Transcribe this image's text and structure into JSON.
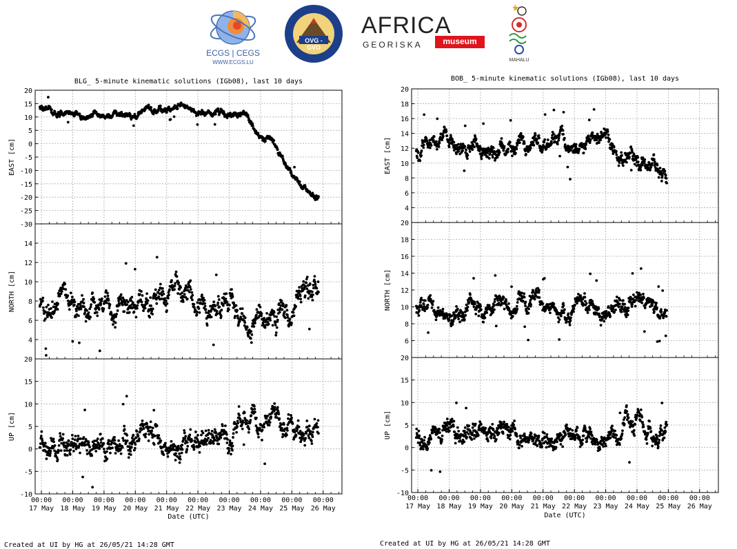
{
  "logos": {
    "ecgs": {
      "title": "ECGS | CEGS",
      "url": "WWW.ECGS.LU"
    },
    "ovg": {
      "ring_text": "OBSERVATOIRE VOLCANOLOGIQUE DE GOMA",
      "ring_bottom": "GOMA VOLCANO OBSERVATORY",
      "badge": "OVG - GVO"
    },
    "africa": {
      "title": "AFRICA",
      "sub": "GEORISKA",
      "badge": "museum"
    },
    "mahalu": {
      "caption": "MAHALU"
    }
  },
  "footers": {
    "left": "Created at UI by HG at 26/05/21 14:28 GMT",
    "right": "Created at UI by HG at 26/05/21 14:28 GMT"
  },
  "chart_data": [
    {
      "station": "BLG",
      "type": "scatter",
      "title": "BLG_ 5-minute kinematic solutions (IGb08), last 10 days",
      "xlabel": "Date (UTC)",
      "x_ticks": [
        "17 May",
        "18 May",
        "19 May",
        "20 May",
        "21 May",
        "22 May",
        "23 May",
        "24 May",
        "25 May",
        "26 May"
      ],
      "x_tick_time": "00:00",
      "x_range_days": [
        -0.2,
        9.6
      ],
      "data_end_day": 8.85,
      "grid": true,
      "panels": [
        {
          "ylabel": "EAST [cm]",
          "ylim": [
            -30,
            20
          ],
          "yticks": [
            -30,
            -25,
            -20,
            -15,
            -10,
            -5,
            0,
            5,
            10,
            15,
            20
          ],
          "series_anchors": [
            [
              0.0,
              13.5
            ],
            [
              0.4,
              11.0
            ],
            [
              0.9,
              11.5
            ],
            [
              1.4,
              10.5
            ],
            [
              2.0,
              11.0
            ],
            [
              3.0,
              10.5
            ],
            [
              4.0,
              12.5
            ],
            [
              4.5,
              14.0
            ],
            [
              5.2,
              12.0
            ],
            [
              6.0,
              12.0
            ],
            [
              6.5,
              11.0
            ],
            [
              6.9,
              4.0
            ],
            [
              7.3,
              2.0
            ],
            [
              7.8,
              -7.0
            ],
            [
              8.3,
              -15.0
            ],
            [
              8.8,
              -20.0
            ],
            [
              9.3,
              -22.0
            ],
            [
              9.8,
              -23.0
            ]
          ],
          "noise": 1.2
        },
        {
          "ylabel": "NORTH [cm]",
          "ylim": [
            2,
            16
          ],
          "yticks": [
            4,
            6,
            8,
            10,
            12,
            14
          ],
          "series_anchors": [
            [
              0.0,
              8.0
            ],
            [
              1.0,
              7.5
            ],
            [
              2.0,
              7.8
            ],
            [
              3.0,
              7.6
            ],
            [
              4.0,
              8.5
            ],
            [
              5.0,
              7.6
            ],
            [
              6.0,
              8.0
            ],
            [
              6.5,
              6.0
            ],
            [
              7.5,
              6.5
            ],
            [
              8.0,
              7.5
            ],
            [
              8.6,
              8.5
            ],
            [
              9.1,
              10.5
            ],
            [
              9.8,
              12.0
            ]
          ],
          "noise": 1.3
        },
        {
          "ylabel": "UP [cm]",
          "ylim": [
            -10,
            20
          ],
          "yticks": [
            -10,
            -5,
            0,
            5,
            10,
            15,
            20
          ],
          "series_anchors": [
            [
              0.0,
              1.0
            ],
            [
              1.0,
              2.0
            ],
            [
              2.0,
              1.0
            ],
            [
              3.0,
              1.0
            ],
            [
              4.0,
              2.0
            ],
            [
              5.0,
              1.0
            ],
            [
              6.0,
              0.5
            ],
            [
              6.2,
              6.0
            ],
            [
              7.0,
              5.5
            ],
            [
              8.0,
              5.0
            ],
            [
              9.0,
              4.0
            ],
            [
              9.8,
              6.0
            ]
          ],
          "noise": 2.6
        }
      ]
    },
    {
      "station": "BOB",
      "type": "scatter",
      "title": "BOB_ 5-minute kinematic solutions (IGb08), last 10 days",
      "xlabel": "Date (UTC)",
      "x_ticks": [
        "17 May",
        "18 May",
        "19 May",
        "20 May",
        "21 May",
        "22 May",
        "23 May",
        "24 May",
        "25 May",
        "26 May"
      ],
      "x_tick_time": "00:00",
      "x_range_days": [
        -0.2,
        9.6
      ],
      "data_end_day": 7.95,
      "grid": true,
      "panels": [
        {
          "ylabel": "EAST [cm]",
          "ylim": [
            2,
            20
          ],
          "yticks": [
            4,
            6,
            8,
            10,
            12,
            14,
            16,
            18,
            20
          ],
          "series_anchors": [
            [
              0.0,
              11.5
            ],
            [
              0.5,
              13.5
            ],
            [
              1.0,
              12.5
            ],
            [
              2.0,
              12.5
            ],
            [
              3.0,
              12.0
            ],
            [
              4.0,
              12.5
            ],
            [
              5.0,
              12.5
            ],
            [
              6.0,
              12.5
            ],
            [
              6.5,
              11.0
            ],
            [
              7.0,
              10.0
            ],
            [
              7.5,
              8.5
            ],
            [
              8.0,
              7.5
            ]
          ],
          "noise": 1.1
        },
        {
          "ylabel": "NORTH [cm]",
          "ylim": [
            4,
            20
          ],
          "yticks": [
            6,
            8,
            10,
            12,
            14,
            16,
            18,
            20
          ],
          "series_anchors": [
            [
              0.0,
              9.8
            ],
            [
              1.0,
              10.0
            ],
            [
              2.0,
              10.0
            ],
            [
              3.0,
              10.5
            ],
            [
              4.0,
              10.0
            ],
            [
              5.0,
              10.0
            ],
            [
              6.0,
              10.0
            ],
            [
              6.5,
              10.5
            ],
            [
              7.0,
              11.0
            ],
            [
              7.5,
              10.0
            ],
            [
              8.0,
              9.5
            ]
          ],
          "noise": 1.0
        },
        {
          "ylabel": "UP [cm]",
          "ylim": [
            -10,
            20
          ],
          "yticks": [
            -10,
            -5,
            0,
            5,
            10,
            15,
            20
          ],
          "series_anchors": [
            [
              0.0,
              3.0
            ],
            [
              1.0,
              3.5
            ],
            [
              2.0,
              3.5
            ],
            [
              3.0,
              2.5
            ],
            [
              4.0,
              3.5
            ],
            [
              5.0,
              2.0
            ],
            [
              6.0,
              2.5
            ],
            [
              7.0,
              5.0
            ],
            [
              7.5,
              3.0
            ],
            [
              8.0,
              3.0
            ]
          ],
          "noise": 2.3
        }
      ]
    }
  ]
}
